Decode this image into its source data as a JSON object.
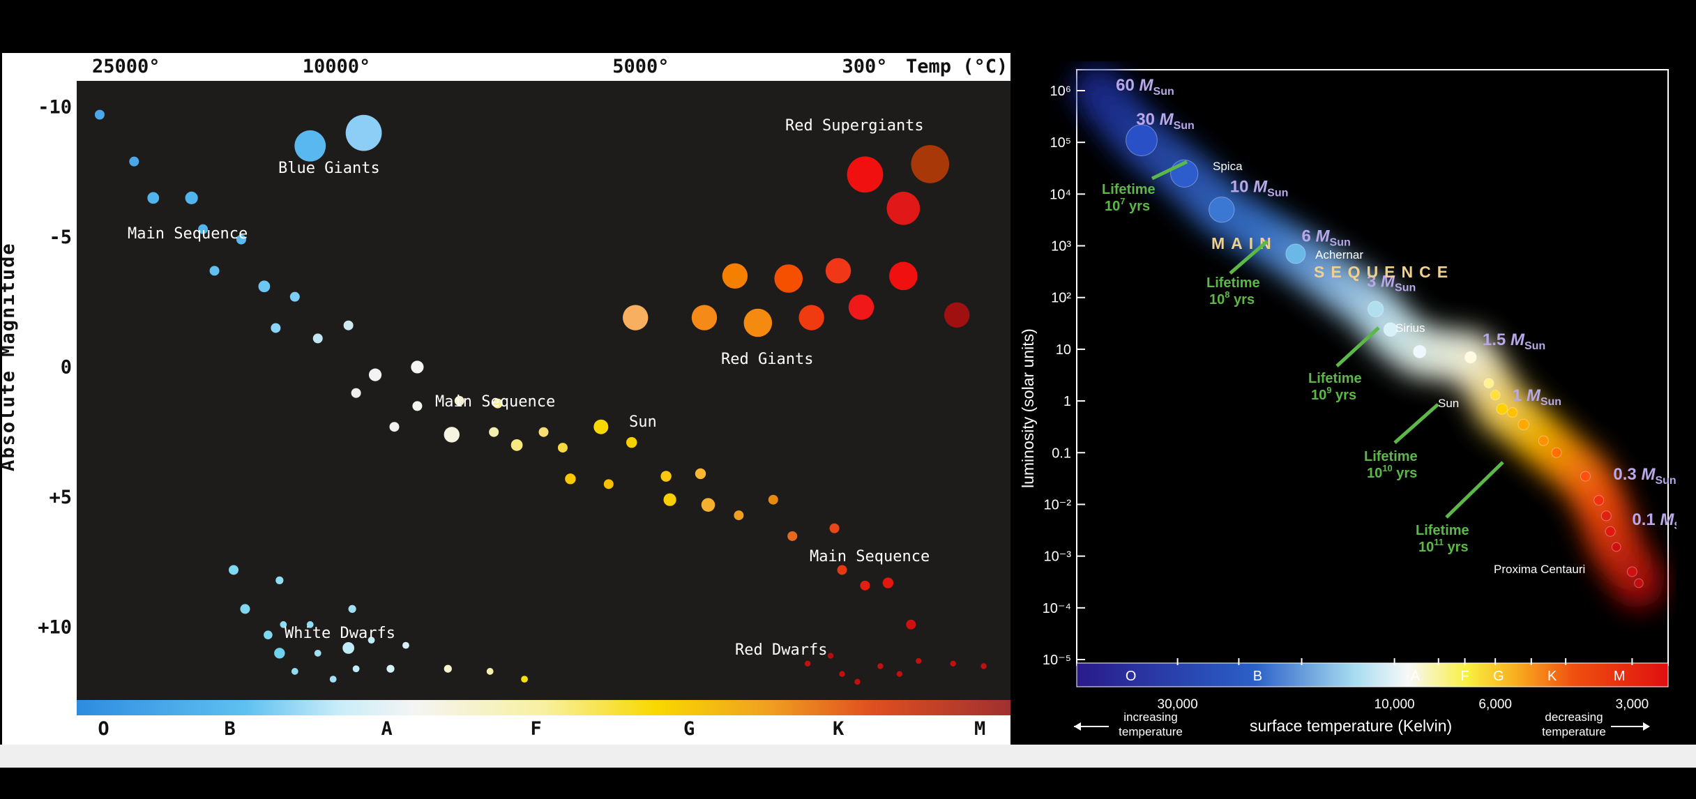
{
  "chart_data": [
    {
      "type": "scatter",
      "ylabel": "Absolute Magnitude",
      "top_axis_label": "Temp (°C)",
      "top_ticks": [
        "25000°",
        "10000°",
        "5000°",
        "300°"
      ],
      "y_ticks": [
        "-10",
        "-5",
        "0",
        "+5",
        "+10"
      ],
      "spectral_classes": [
        "O",
        "B",
        "A",
        "F",
        "G",
        "K",
        "M"
      ],
      "ylim": [
        -11,
        12.8
      ],
      "regions": [
        {
          "name": "Blue Giants",
          "label": "Blue Giants"
        },
        {
          "name": "Main Sequence",
          "label": "Main Sequence"
        },
        {
          "name": "Main Sequence (middle)",
          "label": "Main Sequence"
        },
        {
          "name": "Main Sequence (lower)",
          "label": "Main Sequence"
        },
        {
          "name": "Sun",
          "label": "Sun"
        },
        {
          "name": "Red Supergiants",
          "label": "Red Supergiants"
        },
        {
          "name": "Red Giants",
          "label": "Red Giants"
        },
        {
          "name": "White Dwarfs",
          "label": "White Dwarfs"
        },
        {
          "name": "Red Dwarfs",
          "label": "Red Dwarfs"
        }
      ],
      "points": [
        {
          "x": 0.3,
          "y": -9.7,
          "s": 1,
          "c": "#4aa8e8"
        },
        {
          "x": 0.75,
          "y": -7.9,
          "s": 1,
          "c": "#4aa8e8"
        },
        {
          "x": 1.0,
          "y": -6.5,
          "s": 1.2,
          "c": "#52b4ec"
        },
        {
          "x": 1.5,
          "y": -6.5,
          "s": 1.3,
          "c": "#52b4ec"
        },
        {
          "x": 1.65,
          "y": -5.3,
          "s": 1,
          "c": "#52b4ec"
        },
        {
          "x": 2.15,
          "y": -4.9,
          "s": 1,
          "c": "#5ab8ee"
        },
        {
          "x": 1.8,
          "y": -3.7,
          "s": 1,
          "c": "#62c0f0"
        },
        {
          "x": 2.45,
          "y": -3.1,
          "s": 1.2,
          "c": "#6cc6f2"
        },
        {
          "x": 2.85,
          "y": -2.7,
          "s": 1,
          "c": "#7ccff4"
        },
        {
          "x": 2.6,
          "y": -1.5,
          "s": 1,
          "c": "#8ad6f6"
        },
        {
          "x": 3.15,
          "y": -1.1,
          "s": 1,
          "c": "#bfe6f2"
        },
        {
          "x": 3.55,
          "y": -1.6,
          "s": 1,
          "c": "#cdeaf0"
        },
        {
          "x": 3.9,
          "y": 0.3,
          "s": 1.3,
          "c": "#f3f3f3"
        },
        {
          "x": 4.45,
          "y": 0.0,
          "s": 1.3,
          "c": "#f5f5f5"
        },
        {
          "x": 3.65,
          "y": 1.0,
          "s": 1,
          "c": "#eeeeee"
        },
        {
          "x": 4.15,
          "y": 2.3,
          "s": 1,
          "c": "#f0f0f0"
        },
        {
          "x": 4.45,
          "y": 1.5,
          "s": 1,
          "c": "#f4f4f0"
        },
        {
          "x": 4.9,
          "y": 2.6,
          "s": 1.6,
          "c": "#f5f4e0"
        },
        {
          "x": 5.0,
          "y": 1.3,
          "s": 1,
          "c": "#f4f2d0"
        },
        {
          "x": 5.45,
          "y": 2.5,
          "s": 1,
          "c": "#f4eeb0"
        },
        {
          "x": 5.5,
          "y": 1.4,
          "s": 1,
          "c": "#f8ee90"
        },
        {
          "x": 5.75,
          "y": 3.0,
          "s": 1.2,
          "c": "#f8e880"
        },
        {
          "x": 6.1,
          "y": 2.5,
          "s": 1,
          "c": "#f8e070"
        },
        {
          "x": 6.35,
          "y": 3.1,
          "s": 1,
          "c": "#f8d840"
        },
        {
          "x": 6.85,
          "y": 2.3,
          "s": 1.5,
          "c": "#f8d800"
        },
        {
          "x": 7.25,
          "y": 2.9,
          "s": 1.1,
          "c": "#f8d000"
        },
        {
          "x": 6.45,
          "y": 4.3,
          "s": 1.1,
          "c": "#f8c800"
        },
        {
          "x": 6.95,
          "y": 4.5,
          "s": 1,
          "c": "#f8c000"
        },
        {
          "x": 7.7,
          "y": 4.2,
          "s": 1.1,
          "c": "#f8c810"
        },
        {
          "x": 8.15,
          "y": 4.1,
          "s": 1.1,
          "c": "#f8b830"
        },
        {
          "x": 7.75,
          "y": 5.1,
          "s": 1.3,
          "c": "#f8d000"
        },
        {
          "x": 8.25,
          "y": 5.3,
          "s": 1.4,
          "c": "#f5b030"
        },
        {
          "x": 8.65,
          "y": 5.7,
          "s": 1,
          "c": "#f0a020"
        },
        {
          "x": 9.1,
          "y": 5.1,
          "s": 1,
          "c": "#e88a10"
        },
        {
          "x": 9.35,
          "y": 6.5,
          "s": 1,
          "c": "#e86820"
        },
        {
          "x": 9.9,
          "y": 6.2,
          "s": 1,
          "c": "#e84818"
        },
        {
          "x": 10.0,
          "y": 7.8,
          "s": 1,
          "c": "#e83810"
        },
        {
          "x": 10.3,
          "y": 8.4,
          "s": 1,
          "c": "#e02010"
        },
        {
          "x": 10.6,
          "y": 8.3,
          "s": 1.1,
          "c": "#e01810"
        },
        {
          "x": 10.9,
          "y": 9.9,
          "s": 1,
          "c": "#d01010"
        },
        {
          "x": 2.05,
          "y": 7.8,
          "s": 1,
          "c": "#80d8f0"
        },
        {
          "x": 2.65,
          "y": 8.2,
          "s": 0.8,
          "c": "#90dcf0"
        },
        {
          "x": 2.2,
          "y": 9.3,
          "s": 1,
          "c": "#80d8f0"
        },
        {
          "x": 2.7,
          "y": 9.9,
          "s": 0.7,
          "c": "#90dcf0"
        },
        {
          "x": 3.05,
          "y": 9.9,
          "s": 0.7,
          "c": "#90dcf0"
        },
        {
          "x": 3.6,
          "y": 9.3,
          "s": 0.8,
          "c": "#a0e0f2"
        },
        {
          "x": 2.5,
          "y": 10.3,
          "s": 0.9,
          "c": "#80d8f0"
        },
        {
          "x": 2.65,
          "y": 11.0,
          "s": 1.1,
          "c": "#70d0f0"
        },
        {
          "x": 2.85,
          "y": 11.7,
          "s": 0.7,
          "c": "#90dcf0"
        },
        {
          "x": 3.15,
          "y": 11.0,
          "s": 0.7,
          "c": "#a0e0f2"
        },
        {
          "x": 3.55,
          "y": 10.8,
          "s": 1.2,
          "c": "#c0ecf8"
        },
        {
          "x": 3.35,
          "y": 12.0,
          "s": 0.7,
          "c": "#a0e0f2"
        },
        {
          "x": 3.65,
          "y": 11.6,
          "s": 0.7,
          "c": "#c0ecf8"
        },
        {
          "x": 3.85,
          "y": 10.5,
          "s": 0.7,
          "c": "#c0ecf8"
        },
        {
          "x": 4.1,
          "y": 11.6,
          "s": 0.8,
          "c": "#d8f0f8"
        },
        {
          "x": 4.3,
          "y": 10.7,
          "s": 0.7,
          "c": "#d8f0f8"
        },
        {
          "x": 4.85,
          "y": 11.6,
          "s": 0.8,
          "c": "#f8f4d0"
        },
        {
          "x": 5.4,
          "y": 11.7,
          "s": 0.7,
          "c": "#f8f0b0"
        },
        {
          "x": 5.85,
          "y": 12.0,
          "s": 0.7,
          "c": "#f8e000"
        },
        {
          "x": 9.55,
          "y": 11.4,
          "s": 0.6,
          "c": "#c01010"
        },
        {
          "x": 9.85,
          "y": 11.1,
          "s": 0.6,
          "c": "#b01010"
        },
        {
          "x": 10.0,
          "y": 11.8,
          "s": 0.6,
          "c": "#c01010"
        },
        {
          "x": 10.2,
          "y": 12.1,
          "s": 0.6,
          "c": "#c01010"
        },
        {
          "x": 10.5,
          "y": 11.5,
          "s": 0.6,
          "c": "#c01010"
        },
        {
          "x": 10.75,
          "y": 11.8,
          "s": 0.6,
          "c": "#c01010"
        },
        {
          "x": 11.0,
          "y": 11.3,
          "s": 0.6,
          "c": "#c01010"
        },
        {
          "x": 11.45,
          "y": 11.4,
          "s": 0.6,
          "c": "#c01010"
        },
        {
          "x": 11.85,
          "y": 11.5,
          "s": 0.6,
          "c": "#c01010"
        },
        {
          "x": 3.05,
          "y": -8.5,
          "s": 3.2,
          "c": "#5ab8f0"
        },
        {
          "x": 3.75,
          "y": -9.0,
          "s": 3.7,
          "c": "#8ccef6"
        },
        {
          "x": 10.3,
          "y": -7.4,
          "s": 3.7,
          "c": "#f01010"
        },
        {
          "x": 11.15,
          "y": -7.8,
          "s": 3.9,
          "c": "#a83808"
        },
        {
          "x": 10.8,
          "y": -6.1,
          "s": 3.4,
          "c": "#e01818"
        },
        {
          "x": 7.3,
          "y": -1.9,
          "s": 2.6,
          "c": "#f8b060"
        },
        {
          "x": 8.2,
          "y": -1.9,
          "s": 2.6,
          "c": "#f58a18"
        },
        {
          "x": 8.6,
          "y": -3.5,
          "s": 2.6,
          "c": "#f58000"
        },
        {
          "x": 8.9,
          "y": -1.7,
          "s": 2.9,
          "c": "#f58a10"
        },
        {
          "x": 9.3,
          "y": -3.4,
          "s": 2.9,
          "c": "#f55000"
        },
        {
          "x": 9.6,
          "y": -1.9,
          "s": 2.6,
          "c": "#f03a10"
        },
        {
          "x": 9.95,
          "y": -3.7,
          "s": 2.6,
          "c": "#f03818"
        },
        {
          "x": 10.25,
          "y": -2.3,
          "s": 2.6,
          "c": "#f01818"
        },
        {
          "x": 10.8,
          "y": -3.5,
          "s": 2.9,
          "c": "#f01010"
        },
        {
          "x": 11.5,
          "y": -2.0,
          "s": 2.6,
          "c": "#a01010"
        }
      ]
    },
    {
      "type": "scatter",
      "xlabel": "surface temperature (Kelvin)",
      "ylabel": "luminosity (solar units)",
      "x_scale": "log",
      "y_scale": "log",
      "xlim": [
        50000,
        2500
      ],
      "ylim": [
        1e-05,
        1000000
      ],
      "x_ticks": [
        "30,000",
        "10,000",
        "6,000",
        "3,000"
      ],
      "y_ticks": [
        "10⁻⁵",
        "10⁻⁴",
        "10⁻³",
        "10⁻²",
        "0.1",
        "1",
        "10",
        "10²",
        "10³",
        "10⁴",
        "10⁵",
        "10⁶"
      ],
      "spectral_classes": [
        "O",
        "B",
        "A",
        "F",
        "G",
        "K",
        "M"
      ],
      "left_note": [
        "increasing",
        "temperature"
      ],
      "right_note": [
        "decreasing",
        "temperature"
      ],
      "main_sequence_label": [
        "MAIN",
        "SEQUENCE"
      ],
      "mass_labels": [
        {
          "value": "60",
          "unit": "M",
          "sub": "Sun",
          "T": 41000,
          "L": 1000000
        },
        {
          "value": "30",
          "unit": "M",
          "sub": "Sun",
          "T": 37000,
          "L": 220000
        },
        {
          "value": "10",
          "unit": "M",
          "sub": "Sun",
          "T": 23000,
          "L": 11000
        },
        {
          "value": "6",
          "unit": "M",
          "sub": "Sun",
          "T": 16000,
          "L": 1200
        },
        {
          "value": "3",
          "unit": "M",
          "sub": "Sun",
          "T": 11500,
          "L": 160
        },
        {
          "value": "1.5",
          "unit": "M",
          "sub": "Sun",
          "T": 6400,
          "L": 12
        },
        {
          "value": "1",
          "unit": "M",
          "sub": "Sun",
          "T": 5500,
          "L": 1
        },
        {
          "value": "0.3",
          "unit": "M",
          "sub": "Sun",
          "T": 3300,
          "L": 0.03
        },
        {
          "value": "0.1",
          "unit": "M",
          "sub": "Sun",
          "T": 3000,
          "L": 0.004
        }
      ],
      "star_labels": [
        "Spica",
        "Achernar",
        "Sirius",
        "Sun",
        "Proxima Centauri"
      ],
      "lifetimes": [
        {
          "label": "Lifetime",
          "value": "10",
          "exp": "7",
          "unit": "yrs"
        },
        {
          "label": "Lifetime",
          "value": "10",
          "exp": "8",
          "unit": "yrs"
        },
        {
          "label": "Lifetime",
          "value": "10",
          "exp": "9",
          "unit": "yrs"
        },
        {
          "label": "Lifetime",
          "value": "10",
          "exp": "10",
          "unit": "yrs"
        },
        {
          "label": "Lifetime",
          "value": "10",
          "exp": "11",
          "unit": "yrs"
        }
      ],
      "stars": [
        {
          "T": 36000,
          "L": 110000,
          "r": 1.6,
          "c": "#2a50c8"
        },
        {
          "T": 29000,
          "L": 25000,
          "r": 1.4,
          "c": "#2d5ccc"
        },
        {
          "T": 24000,
          "L": 5000,
          "r": 1.3,
          "c": "#3a78d4"
        },
        {
          "T": 16500,
          "L": 700,
          "r": 1.0,
          "c": "#6ab8e8"
        },
        {
          "T": 11000,
          "L": 60,
          "r": 0.8,
          "c": "#b0e0f0"
        },
        {
          "T": 10200,
          "L": 24,
          "r": 0.7,
          "c": "#d8f0f8"
        },
        {
          "T": 8800,
          "L": 9,
          "r": 0.65,
          "c": "#eef8fc"
        },
        {
          "T": 6800,
          "L": 7,
          "r": 0.6,
          "c": "#fffae0"
        },
        {
          "T": 6200,
          "L": 2.2,
          "r": 0.5,
          "c": "#fff090"
        },
        {
          "T": 6000,
          "L": 1.3,
          "r": 0.5,
          "c": "#ffe040"
        },
        {
          "T": 5800,
          "L": 0.7,
          "r": 0.55,
          "c": "#ffd000"
        },
        {
          "T": 5500,
          "L": 0.6,
          "r": 0.5,
          "c": "#ffc000"
        },
        {
          "T": 5200,
          "L": 0.35,
          "r": 0.55,
          "c": "#ffa800"
        },
        {
          "T": 4700,
          "L": 0.17,
          "r": 0.5,
          "c": "#ff9000"
        },
        {
          "T": 4400,
          "L": 0.1,
          "r": 0.5,
          "c": "#ff7000"
        },
        {
          "T": 3800,
          "L": 0.035,
          "r": 0.5,
          "c": "#ff5010"
        },
        {
          "T": 3550,
          "L": 0.012,
          "r": 0.5,
          "c": "#f03010"
        },
        {
          "T": 3420,
          "L": 0.006,
          "r": 0.5,
          "c": "#e02010"
        },
        {
          "T": 3350,
          "L": 0.003,
          "r": 0.5,
          "c": "#e01810"
        },
        {
          "T": 3250,
          "L": 0.0015,
          "r": 0.45,
          "c": "#d01010"
        },
        {
          "T": 3000,
          "L": 0.0005,
          "r": 0.5,
          "c": "#d01010"
        },
        {
          "T": 2900,
          "L": 0.0003,
          "r": 0.45,
          "c": "#c00c0c"
        }
      ]
    }
  ]
}
